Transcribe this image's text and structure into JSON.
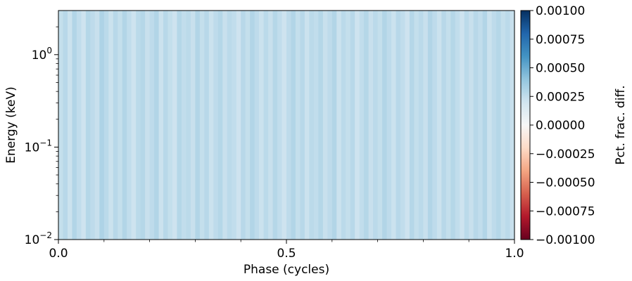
{
  "chart_data": {
    "type": "heatmap",
    "title": "",
    "xlabel": "Phase (cycles)",
    "ylabel": "Energy (keV)",
    "x_scale": "linear",
    "y_scale": "log",
    "xlim": [
      0.0,
      1.0
    ],
    "ylim": [
      0.01,
      3.0
    ],
    "x_ticks": [
      {
        "value": 0.0,
        "label": "0.0"
      },
      {
        "value": 0.5,
        "label": "0.5"
      },
      {
        "value": 1.0,
        "label": "1.0"
      }
    ],
    "x_minor_ticks": [
      0.1,
      0.2,
      0.3,
      0.4,
      0.6,
      0.7,
      0.8,
      0.9
    ],
    "y_ticks": [
      {
        "value": 0.01,
        "base": "10",
        "exp": "−2"
      },
      {
        "value": 0.1,
        "base": "10",
        "exp": "−1"
      },
      {
        "value": 1.0,
        "base": "10",
        "exp": "0"
      }
    ],
    "colorbar": {
      "label": "Pct. frac. diff.",
      "colormap": "RdBu",
      "vmin": -0.001,
      "vmax": 0.001,
      "ticks": [
        {
          "value": 0.001,
          "label": "0.00100"
        },
        {
          "value": 0.00075,
          "label": "0.00075"
        },
        {
          "value": 0.0005,
          "label": "0.00050"
        },
        {
          "value": 0.00025,
          "label": "0.00025"
        },
        {
          "value": 0.0,
          "label": "0.00000"
        },
        {
          "value": -0.00025,
          "label": "−0.00025"
        },
        {
          "value": -0.0005,
          "label": "−0.00050"
        },
        {
          "value": -0.00075,
          "label": "−0.00075"
        },
        {
          "value": -0.001,
          "label": "−0.00100"
        }
      ]
    },
    "phase_bins": 100,
    "column_values": [
      0.00024,
      0.00028,
      0.00022,
      0.0003,
      0.00025,
      0.00021,
      0.00029,
      0.00026,
      0.00023,
      0.00031,
      0.00027,
      0.00022,
      0.00028,
      0.00024,
      0.0003,
      0.00025,
      0.00021,
      0.00027,
      0.00029,
      0.00023,
      0.00026,
      0.0003,
      0.00022,
      0.00028,
      0.00024,
      0.00021,
      0.00029,
      0.00025,
      0.00027,
      0.00023,
      0.0003,
      0.00024,
      0.00028,
      0.00022,
      0.00026,
      0.00029,
      0.00023,
      0.00027,
      0.00025,
      0.00021,
      0.00028,
      0.00024,
      0.0003,
      0.00026,
      0.00022,
      0.00027,
      0.00023,
      0.00029,
      0.00025,
      0.00021,
      0.00026,
      0.0003,
      0.00024,
      0.00028,
      0.00022,
      0.00027,
      0.00025,
      0.00029,
      0.00023,
      0.00026,
      0.0003,
      0.00022,
      0.00027,
      0.00024,
      0.00028,
      0.00021,
      0.00025,
      0.00029,
      0.00023,
      0.00027,
      0.00024,
      0.0003,
      0.00026,
      0.00022,
      0.00028,
      0.00025,
      0.00021,
      0.00029,
      0.00024,
      0.00027,
      0.00023,
      0.0003,
      0.00026,
      0.00022,
      0.00028,
      0.00024,
      0.00029,
      0.00025,
      0.00021,
      0.00027,
      0.00023,
      0.00028,
      0.00025,
      0.0003,
      0.00022,
      0.00026,
      0.00029,
      0.00024,
      0.00027,
      0.00023
    ]
  }
}
